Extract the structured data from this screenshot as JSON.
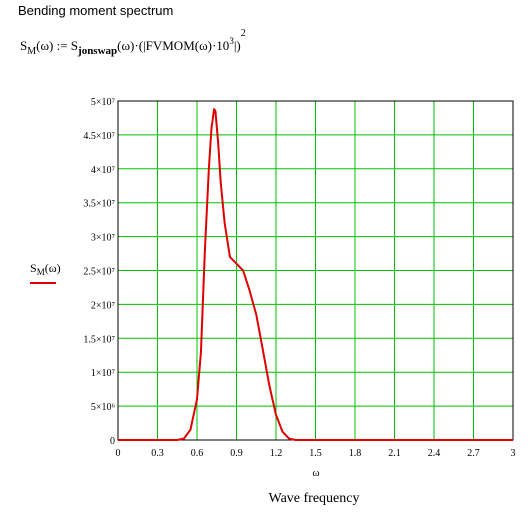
{
  "chart_data": {
    "type": "line",
    "title": "Bending moment spectrum",
    "formula": [
      "S",
      "M",
      "(ω) := S",
      "jonswap",
      "(ω)·(|FVMOM(ω)·10",
      "3",
      "|)",
      "2"
    ],
    "ylabel": [
      "S",
      "M",
      "(ω)"
    ],
    "xlabel": "ω",
    "annotation": "Wave frequency",
    "grid": true,
    "grid_color": "#00c000",
    "xlim": [
      0,
      3
    ],
    "ylim": [
      0,
      50000000
    ],
    "xticks": [
      0,
      0.3,
      0.6,
      0.9,
      1.2,
      1.5,
      1.8,
      2.1,
      2.4,
      2.7,
      3
    ],
    "yticks": [
      0,
      {
        "value": 5000000,
        "label": "5×10⁶"
      },
      {
        "value": 10000000,
        "label": "1×10⁷"
      },
      {
        "value": 15000000,
        "label": "1.5×10⁷"
      },
      {
        "value": 20000000,
        "label": "2×10⁷"
      },
      {
        "value": 25000000,
        "label": "2.5×10⁷"
      },
      {
        "value": 30000000,
        "label": "3×10⁷"
      },
      {
        "value": 35000000,
        "label": "3.5×10⁷"
      },
      {
        "value": 40000000,
        "label": "4×10⁷"
      },
      {
        "value": 45000000,
        "label": "4.5×10⁷"
      },
      {
        "value": 50000000,
        "label": "5×10⁷"
      }
    ],
    "x": [
      0,
      0.45,
      0.5,
      0.55,
      0.6,
      0.63,
      0.66,
      0.69,
      0.71,
      0.73,
      0.74,
      0.76,
      0.78,
      0.81,
      0.85,
      0.9,
      0.95,
      1.0,
      1.05,
      1.1,
      1.15,
      1.2,
      1.25,
      1.3,
      1.35,
      3
    ],
    "series": [
      {
        "color": "#e00000",
        "values": [
          0,
          0,
          200000,
          1500000,
          6000000,
          13000000,
          28000000,
          40000000,
          46000000,
          48800000,
          48500000,
          44000000,
          38000000,
          32000000,
          27000000,
          26000000,
          25000000,
          22000000,
          18500000,
          13300000,
          8000000,
          3700000,
          1200000,
          200000,
          0,
          0
        ]
      }
    ]
  }
}
